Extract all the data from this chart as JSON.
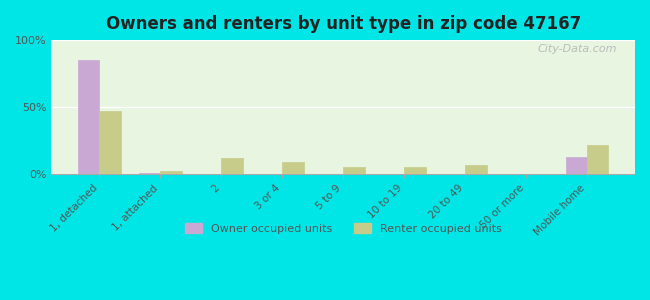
{
  "title": "Owners and renters by unit type in zip code 47167",
  "categories": [
    "1, detached",
    "1, attached",
    "2",
    "3 or 4",
    "5 to 9",
    "10 to 19",
    "20 to 49",
    "50 or more",
    "Mobile home"
  ],
  "owner_values": [
    85,
    1,
    0,
    0,
    0,
    0,
    0,
    0,
    13
  ],
  "renter_values": [
    47,
    2,
    12,
    9,
    5,
    5,
    7,
    0,
    22
  ],
  "owner_color": "#c9a8d4",
  "renter_color": "#c8cc8a",
  "background_color": "#00e5e5",
  "plot_bg_gradient_top": "#e8f5e0",
  "plot_bg_gradient_bottom": "#f5ffe8",
  "ylim": [
    0,
    100
  ],
  "yticks": [
    0,
    50,
    100
  ],
  "ytick_labels": [
    "0%",
    "50%",
    "100%"
  ],
  "bar_width": 0.35,
  "legend_owner": "Owner occupied units",
  "legend_renter": "Renter occupied units",
  "watermark": "City-Data.com"
}
